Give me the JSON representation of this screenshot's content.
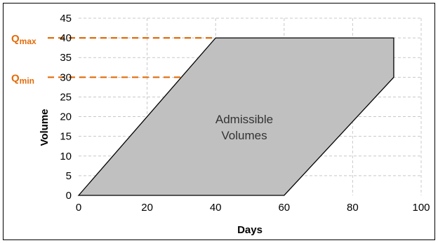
{
  "chart_data": {
    "type": "area",
    "xlabel": "Days",
    "ylabel": "Volume",
    "xlim": [
      0,
      100
    ],
    "ylim": [
      0,
      45
    ],
    "xticks": [
      0,
      20,
      40,
      60,
      80,
      100
    ],
    "yticks": [
      0,
      5,
      10,
      15,
      20,
      25,
      30,
      35,
      40,
      45
    ],
    "grid": true,
    "region": {
      "label_lines": [
        "Admissible",
        "Volumes"
      ],
      "fill": "#c0c0c0",
      "stroke": "#000000",
      "x": [
        0,
        40,
        92,
        92,
        60,
        0
      ],
      "y": [
        0,
        40,
        40,
        30,
        0,
        0
      ]
    },
    "reference_lines": [
      {
        "main": "Q",
        "sub": "max",
        "y": 40,
        "x_end": 40,
        "color": "#e36c0a"
      },
      {
        "main": "Q",
        "sub": "min",
        "y": 30,
        "x_end": 30,
        "color": "#e36c0a"
      }
    ]
  }
}
